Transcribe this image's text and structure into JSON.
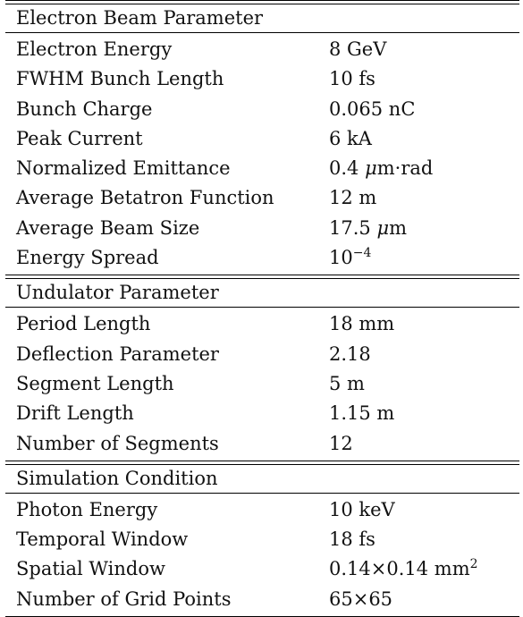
{
  "sections": [
    {
      "title": "Electron Beam Parameter",
      "rows": [
        {
          "param": "Electron Energy",
          "value": "8 GeV"
        },
        {
          "param": "FWHM Bunch Length",
          "value": "10 fs"
        },
        {
          "param": "Bunch Charge",
          "value": "0.065 nC"
        },
        {
          "param": "Peak Current",
          "value": "6 kA"
        },
        {
          "param": "Normalized Emittance",
          "value_pre": "0.4 ",
          "value_italic": "μ",
          "value_post": "m·rad"
        },
        {
          "param": "Average Betatron Function",
          "value": "12 m"
        },
        {
          "param": "Average Beam Size",
          "value_pre": "17.5 ",
          "value_italic": "μ",
          "value_post": "m"
        },
        {
          "param": "Energy Spread",
          "value_base": "10",
          "value_sup": "−4"
        }
      ]
    },
    {
      "title": "Undulator Parameter",
      "rows": [
        {
          "param": "Period Length",
          "value": "18 mm"
        },
        {
          "param": "Deflection Parameter",
          "value": "2.18"
        },
        {
          "param": "Segment Length",
          "value": "5 m"
        },
        {
          "param": "Drift Length",
          "value": "1.15 m"
        },
        {
          "param": "Number of Segments",
          "value": "12"
        }
      ]
    },
    {
      "title": "Simulation Condition",
      "rows": [
        {
          "param": "Photon Energy",
          "value": "10 keV"
        },
        {
          "param": "Temporal Window",
          "value": "18 fs"
        },
        {
          "param": "Spatial Window",
          "value_base": "0.14×0.14 mm",
          "value_sup": "2"
        },
        {
          "param": "Number of Grid Points",
          "value": "65×65"
        }
      ]
    }
  ]
}
